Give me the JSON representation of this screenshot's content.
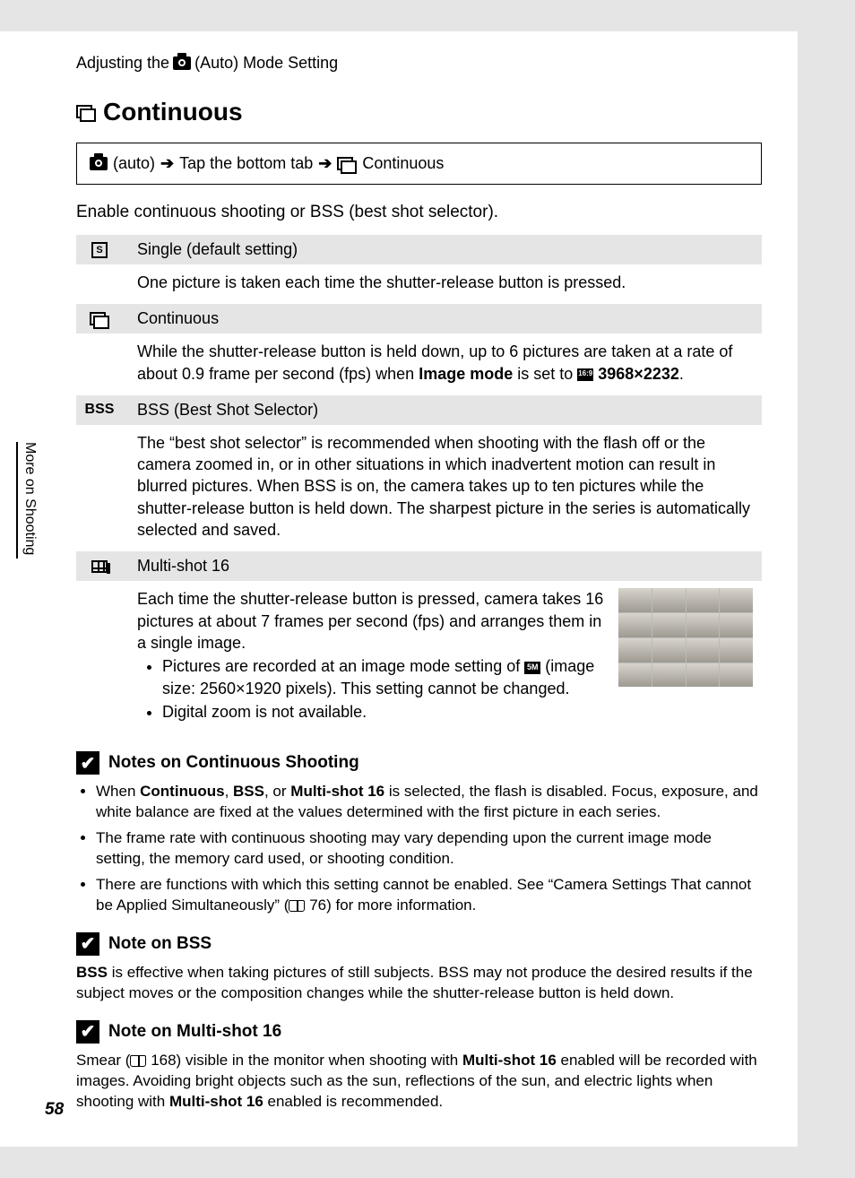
{
  "header": {
    "prefix": "Adjusting the",
    "suffix": "(Auto) Mode Setting"
  },
  "sideTab": "More on Shooting",
  "pageNumber": "58",
  "title": "Continuous",
  "nav": {
    "step1": "(auto)",
    "arrow": "➔",
    "step2": "Tap the bottom tab",
    "step3": "Continuous"
  },
  "intro": "Enable continuous shooting or BSS (best shot selector).",
  "options": {
    "single": {
      "iconLetter": "S",
      "label": "Single (default setting)",
      "body": "One picture is taken each time the shutter-release button is pressed."
    },
    "continuous": {
      "label": "Continuous",
      "body_a": "While the shutter-release button is held down, up to 6 pictures are taken at a rate of about 0.9 frame per second (fps) when ",
      "body_b": "Image mode",
      "body_c": " is set to ",
      "body_d": "3968×2232",
      "body_e": "."
    },
    "bss": {
      "icon": "BSS",
      "label": "BSS (Best Shot Selector)",
      "body": "The “best shot selector” is recommended when shooting with the flash off or the camera zoomed in, or in other situations in which inadvertent motion can result in blurred pictures. When BSS is on, the camera takes up to ten pictures while the shutter-release button is held down. The sharpest picture in the series is automatically selected and saved."
    },
    "multi": {
      "label": "Multi-shot 16",
      "body_intro": "Each time the shutter-release button is pressed, camera takes 16 pictures at about 7 frames per second (fps) and arranges them in a single image.",
      "b1_a": "Pictures are recorded at an image mode setting of ",
      "b1_b": " (image size: 2560×1920 pixels). This setting cannot be changed.",
      "b2": "Digital zoom is not available."
    }
  },
  "notes": {
    "n1": {
      "title": "Notes on Continuous Shooting",
      "li1_a": "When ",
      "li1_b": "Continuous",
      "li1_c": ", ",
      "li1_d": "BSS",
      "li1_e": ", or ",
      "li1_f": "Multi-shot 16",
      "li1_g": " is selected, the flash is disabled. Focus, exposure, and white balance are fixed at the values determined with the first picture in each series.",
      "li2": "The frame rate with continuous shooting may vary depending upon the current image mode setting, the memory card used, or shooting condition.",
      "li3_a": "There are functions with which this setting cannot be enabled. See “Camera Settings That cannot be Applied Simultaneously” (",
      "li3_b": " 76) for more information."
    },
    "n2": {
      "title": "Note on BSS",
      "body_a": "BSS",
      "body_b": " is effective when taking pictures of still subjects. BSS may not produce the desired results if the subject moves or the composition changes while the shutter-release button is held down."
    },
    "n3": {
      "title": "Note on Multi-shot 16",
      "body_a": "Smear (",
      "body_b": " 168) visible in the monitor when shooting with ",
      "body_c": "Multi-shot 16",
      "body_d": " enabled will be recorded with images. Avoiding bright objects such as the sun, reflections of the sun, and electric lights when shooting with ",
      "body_e": "Multi-shot 16",
      "body_f": " enabled is recommended."
    }
  }
}
